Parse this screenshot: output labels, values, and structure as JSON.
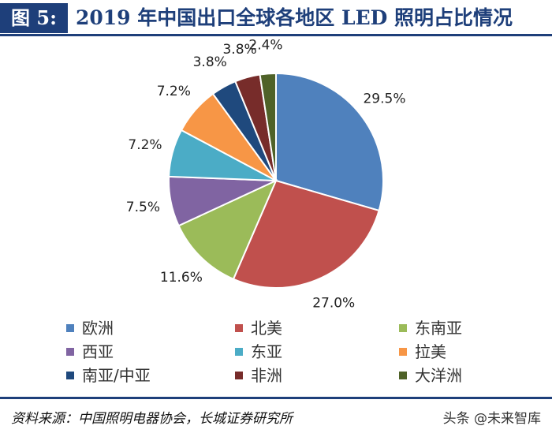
{
  "figure": {
    "number_label": "图 5:",
    "title": "2019 年中国出口全球各地区 LED 照明占比情况"
  },
  "chart_data": {
    "type": "pie",
    "title": "2019 年中国出口全球各地区 LED 照明占比情况",
    "start": "12 o'clock",
    "direction": "clockwise",
    "legend_position": "bottom",
    "slices": [
      {
        "name": "欧洲",
        "value": 29.5,
        "label": "29.5%",
        "color": "#4f81bd"
      },
      {
        "name": "北美",
        "value": 27.0,
        "label": "27.0%",
        "color": "#c0504d"
      },
      {
        "name": "东南亚",
        "value": 11.6,
        "label": "11.6%",
        "color": "#9bbb59"
      },
      {
        "name": "西亚",
        "value": 7.5,
        "label": "7.5%",
        "color": "#8064a2"
      },
      {
        "name": "东亚",
        "value": 7.2,
        "label": "7.2%",
        "color": "#4bacc6"
      },
      {
        "name": "拉美",
        "value": 7.2,
        "label": "7.2%",
        "color": "#f79646"
      },
      {
        "name": "南亚/中亚",
        "value": 3.8,
        "label": "3.8%",
        "color": "#1f497d"
      },
      {
        "name": "非洲",
        "value": 3.8,
        "label": "3.8%",
        "color": "#772c2a"
      },
      {
        "name": "大洋洲",
        "value": 2.4,
        "label": "2.4%",
        "color": "#4f6228"
      }
    ]
  },
  "footer": {
    "source": "资料来源：中国照明电器协会，长城证券研究所",
    "watermark": "头条 @未来智库"
  }
}
